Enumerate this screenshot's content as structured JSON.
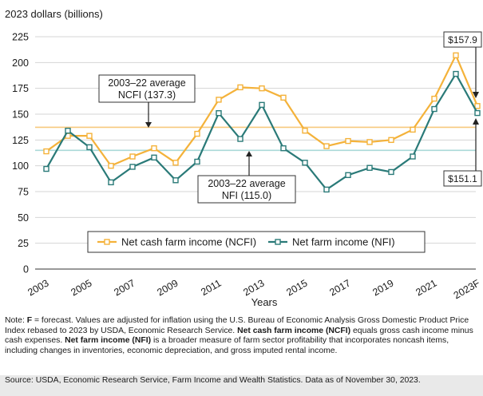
{
  "colors": {
    "ncfi": "#f4b23a",
    "nfi": "#2a7a78",
    "ncfi_avg_line": "#f7c97e",
    "nfi_avg_line": "#a9d9d8",
    "grid": "#d4d4d4",
    "axis": "#333333"
  },
  "chart_data": {
    "type": "line",
    "ylabel": "2023 dollars (billions)",
    "xlabel": "Years",
    "ylim": [
      0,
      225
    ],
    "yticks": [
      0,
      25,
      50,
      75,
      100,
      125,
      150,
      175,
      200,
      225
    ],
    "x": [
      "2003",
      "2004",
      "2005",
      "2006",
      "2007",
      "2008",
      "2009",
      "2010",
      "2011",
      "2012",
      "2013",
      "2014",
      "2015",
      "2016",
      "2017",
      "2018",
      "2019",
      "2020",
      "2021",
      "2022",
      "2023F"
    ],
    "xtick_labels": [
      "2003",
      "",
      "2005",
      "",
      "2007",
      "",
      "2009",
      "",
      "2011",
      "",
      "2013",
      "",
      "2015",
      "",
      "2017",
      "",
      "2019",
      "",
      "2021",
      "",
      "2023F"
    ],
    "grid": "horizontal",
    "legend_position": "bottom-center",
    "series": [
      {
        "key": "ncfi",
        "name": "Net cash farm income (NCFI)",
        "values": [
          114,
          129,
          129,
          100,
          109,
          117,
          103,
          131,
          164,
          176,
          175,
          166,
          134,
          119,
          124,
          123,
          125,
          135,
          165,
          207,
          157.9
        ]
      },
      {
        "key": "nfi",
        "name": "Net farm income (NFI)",
        "values": [
          97,
          134,
          118,
          84,
          99,
          108,
          86,
          104,
          151,
          126,
          159,
          117,
          103,
          77,
          91,
          98,
          94,
          109,
          155,
          189,
          151.1
        ]
      }
    ],
    "reference_lines": [
      {
        "key": "ncfi_avg",
        "value": 137.3,
        "label_line1": "2003–22 average",
        "label_line2": "NCFI (137.3)"
      },
      {
        "key": "nfi_avg",
        "value": 115.0,
        "label_line1": "2003–22 average",
        "label_line2": "NFI (115.0)"
      }
    ],
    "callouts": [
      {
        "key": "ncfi_2023",
        "text": "$157.9"
      },
      {
        "key": "nfi_2023",
        "text": "$151.1"
      }
    ]
  },
  "note": {
    "prefix": "Note: ",
    "f_bold": "F",
    "part1": " = forecast. Values are adjusted for inflation using the U.S. Bureau of Economic Analysis Gross Domestic Product Price Index rebased to 2023 by USDA, Economic Research Service. ",
    "ncfi_bold": "Net cash farm income (NCFI)",
    "part2": " equals gross cash income minus cash expenses. ",
    "nfi_bold": "Net farm income (NFI)",
    "part3": " is a broader measure of farm sector profitability that incorporates noncash items, including changes in inventories, economic depreciation, and gross imputed rental income."
  },
  "source": "Source: USDA, Economic Research Service, Farm Income and Wealth Statistics. Data as of November 30, 2023."
}
